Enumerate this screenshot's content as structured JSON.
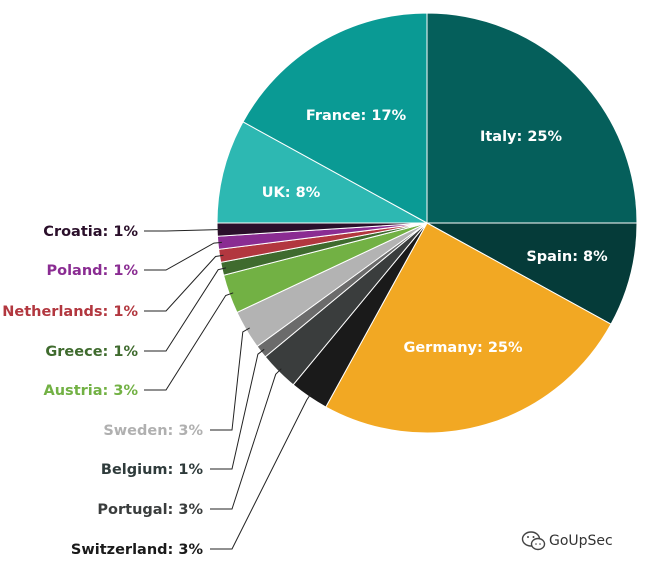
{
  "chart_data": {
    "type": "pie",
    "slices": [
      {
        "label": "Italy: 25%",
        "value": 25,
        "color": "#055f5b"
      },
      {
        "label": "Spain: 8%",
        "value": 8,
        "color": "#053b39"
      },
      {
        "label": "Germany: 25%",
        "value": 25,
        "color": "#f2a823"
      },
      {
        "label": "Switzerland: 3%",
        "value": 3,
        "color": "#1a1a1a",
        "label_color": "#1a1a1a"
      },
      {
        "label": "Portugal: 3%",
        "value": 3,
        "color": "#3a3d3d",
        "label_color": "#3a3d3d"
      },
      {
        "label": "Belgium: 1%",
        "value": 1,
        "color": "#6b6b6b",
        "label_color": "#2f3b3b"
      },
      {
        "label": "Sweden: 3%",
        "value": 3,
        "color": "#b3b3b3",
        "label_color": "#b0b0b0"
      },
      {
        "label": "Austria: 3%",
        "value": 3,
        "color": "#72b144",
        "label_color": "#72b144"
      },
      {
        "label": "Greece: 1%",
        "value": 1,
        "color": "#3f6b2e",
        "label_color": "#3f6b2e"
      },
      {
        "label": "Netherlands: 1%",
        "value": 1,
        "color": "#b2373f",
        "label_color": "#b2373f"
      },
      {
        "label": "Poland: 1%",
        "value": 1,
        "color": "#8a2c92",
        "label_color": "#8a2c92"
      },
      {
        "label": "Croatia: 1%",
        "value": 1,
        "color": "#2a0f2a",
        "label_color": "#2a0f2a"
      },
      {
        "label": "UK: 8%",
        "value": 8,
        "color": "#2db8b2"
      },
      {
        "label": "France: 17%",
        "value": 17,
        "color": "#0a9a94"
      }
    ]
  },
  "watermark": {
    "text": "GoUpSec",
    "icon": "wechat-icon"
  }
}
